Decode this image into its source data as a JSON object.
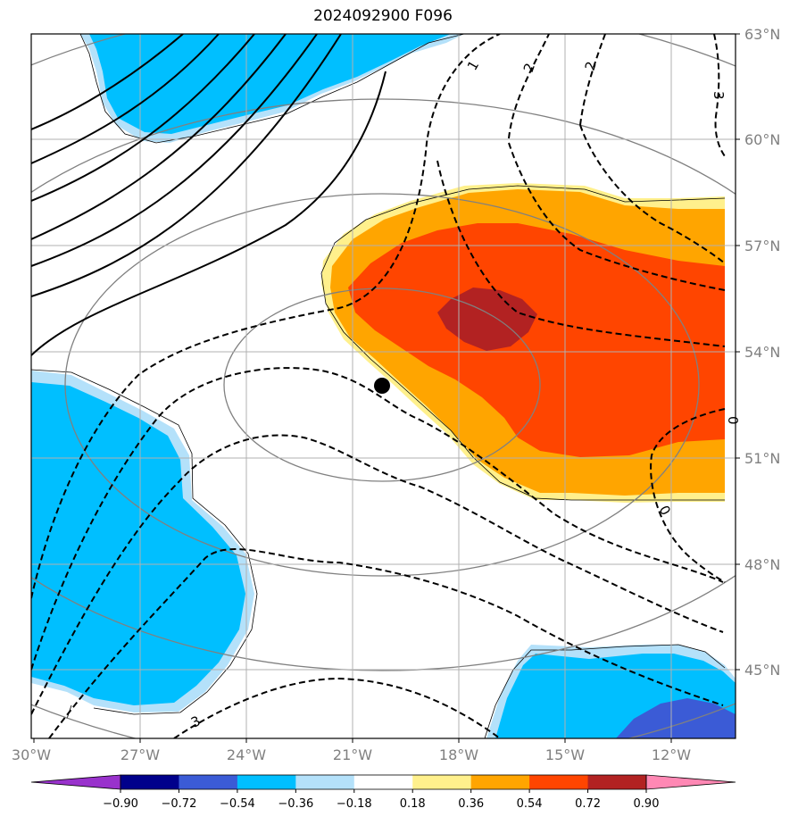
{
  "title": "2024092900 F096",
  "map": {
    "lat_labels": [
      "63°N",
      "60°N",
      "57°N",
      "54°N",
      "51°N",
      "48°N",
      "45°N"
    ],
    "lon_labels": [
      "30°W",
      "27°W",
      "24°W",
      "21°W",
      "18°W",
      "15°W",
      "12°W"
    ],
    "contour_labels": [
      "1",
      "2",
      "2",
      "3",
      "0",
      "3",
      "0"
    ],
    "storm_marker": "black dot",
    "colors": {
      "blue_light": "#b4e1fa",
      "blue": "#00bfff",
      "blue_dark": "#3b5bd6",
      "yellow": "#fff08c",
      "orange": "#ffa500",
      "red_orange": "#ff4500",
      "dark_red": "#b22222"
    }
  },
  "colorbar": {
    "colors": [
      "#9932cc",
      "#00008b",
      "#3b5bd6",
      "#00bfff",
      "#b4e1fa",
      "#ffffff",
      "#fff08c",
      "#ffa500",
      "#ff4500",
      "#b22222",
      "#ff88b4"
    ],
    "labels": [
      "−0.90",
      "−0.72",
      "−0.54",
      "−0.36",
      "−0.18",
      "0.18",
      "0.36",
      "0.54",
      "0.72",
      "0.90"
    ]
  }
}
